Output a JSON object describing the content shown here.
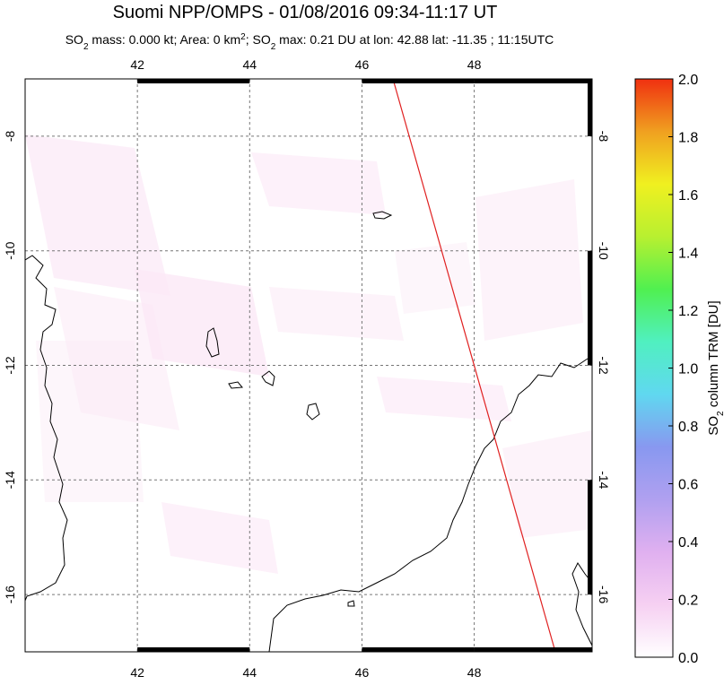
{
  "header": {
    "title": "Suomi NPP/OMPS - 01/08/2016 09:34-11:17 UT",
    "subtitle": [
      {
        "text": "SO"
      },
      {
        "text": "2",
        "sub": true
      },
      {
        "text": " mass: 0.000 kt; Area: 0 km"
      },
      {
        "text": "2",
        "sup": true
      },
      {
        "text": "; SO"
      },
      {
        "text": "2",
        "sub": true
      },
      {
        "text": " max: 0.21 DU at lon: 42.88 lat: -11.35 ; 11:15UTC"
      }
    ]
  },
  "map": {
    "xlim": [
      40,
      50.1
    ],
    "ylim": [
      -17,
      -7
    ],
    "xticks": [
      42,
      44,
      46,
      48
    ],
    "yticks": [
      -8,
      -10,
      -12,
      -14,
      -16
    ],
    "grid": true
  },
  "colorbar": {
    "label": [
      {
        "text": "SO"
      },
      {
        "text": "2",
        "sub": true
      },
      {
        "text": " column TRM [DU]"
      }
    ],
    "lim": [
      0,
      2
    ],
    "ticks": [
      {
        "value": 0,
        "label": "0.0"
      },
      {
        "value": 0.2,
        "label": "0.2"
      },
      {
        "value": 0.4,
        "label": "0.4"
      },
      {
        "value": 0.6,
        "label": "0.6"
      },
      {
        "value": 0.8,
        "label": "0.8"
      },
      {
        "value": 1.0,
        "label": "1.0"
      },
      {
        "value": 1.2,
        "label": "1.2"
      },
      {
        "value": 1.4,
        "label": "1.4"
      },
      {
        "value": 1.6,
        "label": "1.6"
      },
      {
        "value": 1.8,
        "label": "1.8"
      },
      {
        "value": 2.0,
        "label": "2.0"
      }
    ],
    "colors": [
      "#ffffff",
      "#f6d0f2",
      "#e0b0f0",
      "#b0a0f0",
      "#8898f0",
      "#60d8f0",
      "#50f0c0",
      "#50f050",
      "#b8f030",
      "#f0f020",
      "#f0a020",
      "#f03010"
    ]
  }
}
